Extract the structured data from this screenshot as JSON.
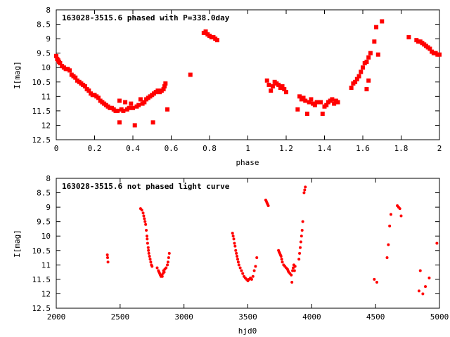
{
  "chart_data": [
    {
      "type": "scatter",
      "title": "163028-3515.6 phased with P=338.0day",
      "xlabel": "phase",
      "ylabel": "I[mag]",
      "xlim": [
        0,
        2
      ],
      "ylim": [
        12.5,
        8
      ],
      "y_inverted": true,
      "xticks": [
        "0",
        "0.2",
        "0.4",
        "0.6",
        "0.8",
        "1",
        "1.2",
        "1.4",
        "1.6",
        "1.8",
        "2"
      ],
      "yticks": [
        "8",
        "8.5",
        "9",
        "9.5",
        "10",
        "10.5",
        "11",
        "11.5",
        "12",
        "12.5"
      ],
      "marker": "filled-square",
      "color": "#ff0000",
      "series": [
        {
          "points": [
            [
              0.0,
              9.6
            ],
            [
              0.005,
              9.7
            ],
            [
              0.01,
              9.75
            ],
            [
              0.015,
              9.8
            ],
            [
              0.02,
              9.85
            ],
            [
              0.03,
              9.95
            ],
            [
              0.04,
              10.0
            ],
            [
              0.05,
              10.05
            ],
            [
              0.06,
              10.05
            ],
            [
              0.07,
              10.1
            ],
            [
              0.08,
              10.25
            ],
            [
              0.09,
              10.3
            ],
            [
              0.1,
              10.35
            ],
            [
              0.11,
              10.45
            ],
            [
              0.12,
              10.5
            ],
            [
              0.13,
              10.55
            ],
            [
              0.14,
              10.6
            ],
            [
              0.15,
              10.65
            ],
            [
              0.16,
              10.75
            ],
            [
              0.17,
              10.8
            ],
            [
              0.18,
              10.9
            ],
            [
              0.19,
              10.95
            ],
            [
              0.2,
              10.95
            ],
            [
              0.21,
              11.0
            ],
            [
              0.22,
              11.05
            ],
            [
              0.23,
              11.15
            ],
            [
              0.24,
              11.2
            ],
            [
              0.25,
              11.25
            ],
            [
              0.26,
              11.3
            ],
            [
              0.27,
              11.35
            ],
            [
              0.28,
              11.4
            ],
            [
              0.29,
              11.4
            ],
            [
              0.3,
              11.45
            ],
            [
              0.31,
              11.5
            ],
            [
              0.32,
              11.5
            ],
            [
              0.33,
              11.15
            ],
            [
              0.33,
              11.9
            ],
            [
              0.34,
              11.45
            ],
            [
              0.35,
              11.5
            ],
            [
              0.36,
              11.2
            ],
            [
              0.37,
              11.45
            ],
            [
              0.38,
              11.4
            ],
            [
              0.39,
              11.25
            ],
            [
              0.4,
              11.4
            ],
            [
              0.41,
              12.0
            ],
            [
              0.42,
              11.35
            ],
            [
              0.43,
              11.3
            ],
            [
              0.44,
              11.1
            ],
            [
              0.45,
              11.25
            ],
            [
              0.46,
              11.2
            ],
            [
              0.47,
              11.1
            ],
            [
              0.48,
              11.05
            ],
            [
              0.49,
              11.0
            ],
            [
              0.5,
              10.95
            ],
            [
              0.505,
              11.9
            ],
            [
              0.51,
              10.9
            ],
            [
              0.52,
              10.85
            ],
            [
              0.53,
              10.8
            ],
            [
              0.54,
              10.85
            ],
            [
              0.55,
              10.8
            ],
            [
              0.56,
              10.75
            ],
            [
              0.565,
              10.65
            ],
            [
              0.57,
              10.55
            ],
            [
              0.58,
              11.45
            ],
            [
              0.7,
              10.25
            ],
            [
              0.77,
              8.8
            ],
            [
              0.78,
              8.75
            ],
            [
              0.79,
              8.85
            ],
            [
              0.8,
              8.9
            ],
            [
              0.81,
              8.95
            ],
            [
              0.82,
              8.95
            ],
            [
              0.83,
              9.0
            ],
            [
              0.84,
              9.05
            ],
            [
              1.1,
              10.45
            ],
            [
              1.11,
              10.6
            ],
            [
              1.12,
              10.8
            ],
            [
              1.13,
              10.65
            ],
            [
              1.14,
              10.5
            ],
            [
              1.15,
              10.55
            ],
            [
              1.16,
              10.6
            ],
            [
              1.17,
              10.7
            ],
            [
              1.18,
              10.65
            ],
            [
              1.19,
              10.75
            ],
            [
              1.2,
              10.85
            ],
            [
              1.26,
              11.45
            ],
            [
              1.27,
              11.0
            ],
            [
              1.28,
              11.1
            ],
            [
              1.29,
              11.05
            ],
            [
              1.3,
              11.15
            ],
            [
              1.31,
              11.6
            ],
            [
              1.32,
              11.2
            ],
            [
              1.33,
              11.1
            ],
            [
              1.34,
              11.25
            ],
            [
              1.35,
              11.3
            ],
            [
              1.36,
              11.2
            ],
            [
              1.38,
              11.2
            ],
            [
              1.39,
              11.6
            ],
            [
              1.4,
              11.35
            ],
            [
              1.41,
              11.3
            ],
            [
              1.42,
              11.2
            ],
            [
              1.43,
              11.15
            ],
            [
              1.44,
              11.1
            ],
            [
              1.45,
              11.25
            ],
            [
              1.46,
              11.15
            ],
            [
              1.47,
              11.2
            ],
            [
              1.54,
              10.7
            ],
            [
              1.55,
              10.55
            ],
            [
              1.56,
              10.5
            ],
            [
              1.57,
              10.4
            ],
            [
              1.58,
              10.3
            ],
            [
              1.59,
              10.15
            ],
            [
              1.6,
              10.0
            ],
            [
              1.61,
              9.85
            ],
            [
              1.62,
              9.8
            ],
            [
              1.63,
              9.65
            ],
            [
              1.64,
              9.5
            ],
            [
              1.62,
              10.75
            ],
            [
              1.63,
              10.45
            ],
            [
              1.66,
              9.1
            ],
            [
              1.67,
              8.6
            ],
            [
              1.68,
              9.55
            ],
            [
              1.7,
              8.4
            ],
            [
              1.84,
              8.95
            ],
            [
              1.88,
              9.05
            ],
            [
              1.89,
              9.1
            ],
            [
              1.9,
              9.1
            ],
            [
              1.91,
              9.15
            ],
            [
              1.92,
              9.2
            ],
            [
              1.93,
              9.25
            ],
            [
              1.94,
              9.3
            ],
            [
              1.95,
              9.35
            ],
            [
              1.96,
              9.45
            ],
            [
              1.97,
              9.5
            ],
            [
              1.98,
              9.5
            ],
            [
              1.99,
              9.55
            ],
            [
              2.0,
              9.55
            ]
          ]
        }
      ]
    },
    {
      "type": "scatter",
      "title": "163028-3515.6 not phased light curve",
      "xlabel": "hjd0",
      "ylabel": "I[mag]",
      "xlim": [
        2000,
        5000
      ],
      "ylim": [
        12.5,
        8
      ],
      "y_inverted": true,
      "xticks": [
        "2000",
        "2500",
        "3000",
        "3500",
        "4000",
        "4500",
        "5000"
      ],
      "yticks": [
        "8",
        "8.5",
        "9",
        "9.5",
        "10",
        "10.5",
        "11",
        "11.5",
        "12",
        "12.5"
      ],
      "marker": "filled-circle",
      "color": "#ff0000",
      "series": [
        {
          "points": [
            [
              2400,
              10.65
            ],
            [
              2402,
              10.75
            ],
            [
              2405,
              10.9
            ],
            [
              2660,
              9.05
            ],
            [
              2670,
              9.1
            ],
            [
              2680,
              9.2
            ],
            [
              2685,
              9.3
            ],
            [
              2690,
              9.4
            ],
            [
              2695,
              9.5
            ],
            [
              2700,
              9.6
            ],
            [
              2705,
              9.8
            ],
            [
              2710,
              10.0
            ],
            [
              2712,
              10.1
            ],
            [
              2715,
              10.25
            ],
            [
              2720,
              10.4
            ],
            [
              2722,
              10.5
            ],
            [
              2725,
              10.6
            ],
            [
              2730,
              10.7
            ],
            [
              2735,
              10.8
            ],
            [
              2740,
              10.9
            ],
            [
              2745,
              11.0
            ],
            [
              2750,
              11.05
            ],
            [
              2790,
              11.1
            ],
            [
              2800,
              11.2
            ],
            [
              2805,
              11.25
            ],
            [
              2810,
              11.3
            ],
            [
              2815,
              11.35
            ],
            [
              2820,
              11.4
            ],
            [
              2825,
              11.35
            ],
            [
              2830,
              11.4
            ],
            [
              2835,
              11.3
            ],
            [
              2840,
              11.2
            ],
            [
              2845,
              11.25
            ],
            [
              2850,
              11.15
            ],
            [
              2860,
              11.1
            ],
            [
              2870,
              11.0
            ],
            [
              2875,
              10.9
            ],
            [
              2880,
              10.75
            ],
            [
              2885,
              10.6
            ],
            [
              3380,
              9.9
            ],
            [
              3385,
              10.0
            ],
            [
              3390,
              10.1
            ],
            [
              3395,
              10.25
            ],
            [
              3400,
              10.35
            ],
            [
              3405,
              10.5
            ],
            [
              3410,
              10.6
            ],
            [
              3415,
              10.7
            ],
            [
              3420,
              10.8
            ],
            [
              3425,
              10.9
            ],
            [
              3430,
              11.0
            ],
            [
              3440,
              11.1
            ],
            [
              3450,
              11.2
            ],
            [
              3460,
              11.3
            ],
            [
              3470,
              11.4
            ],
            [
              3480,
              11.45
            ],
            [
              3490,
              11.5
            ],
            [
              3500,
              11.55
            ],
            [
              3510,
              11.5
            ],
            [
              3520,
              11.45
            ],
            [
              3530,
              11.5
            ],
            [
              3540,
              11.4
            ],
            [
              3550,
              11.2
            ],
            [
              3560,
              11.05
            ],
            [
              3570,
              10.75
            ],
            [
              3640,
              8.75
            ],
            [
              3645,
              8.8
            ],
            [
              3650,
              8.85
            ],
            [
              3655,
              8.9
            ],
            [
              3660,
              8.95
            ],
            [
              3740,
              10.5
            ],
            [
              3745,
              10.55
            ],
            [
              3750,
              10.6
            ],
            [
              3755,
              10.65
            ],
            [
              3760,
              10.7
            ],
            [
              3765,
              10.8
            ],
            [
              3770,
              10.9
            ],
            [
              3780,
              11.0
            ],
            [
              3790,
              11.05
            ],
            [
              3800,
              11.1
            ],
            [
              3810,
              11.15
            ],
            [
              3815,
              11.2
            ],
            [
              3820,
              11.25
            ],
            [
              3830,
              11.3
            ],
            [
              3840,
              11.35
            ],
            [
              3845,
              11.6
            ],
            [
              3850,
              11.2
            ],
            [
              3855,
              11.1
            ],
            [
              3860,
              11.0
            ],
            [
              3865,
              11.2
            ],
            [
              3870,
              11.05
            ],
            [
              3900,
              10.8
            ],
            [
              3905,
              10.6
            ],
            [
              3910,
              10.4
            ],
            [
              3915,
              10.2
            ],
            [
              3920,
              10.0
            ],
            [
              3925,
              9.8
            ],
            [
              3930,
              9.5
            ],
            [
              3940,
              8.5
            ],
            [
              3945,
              8.4
            ],
            [
              3950,
              8.3
            ],
            [
              4490,
              11.5
            ],
            [
              4510,
              11.6
            ],
            [
              4590,
              10.75
            ],
            [
              4600,
              10.3
            ],
            [
              4610,
              9.65
            ],
            [
              4620,
              9.25
            ],
            [
              4670,
              8.95
            ],
            [
              4680,
              9.0
            ],
            [
              4690,
              9.05
            ],
            [
              4700,
              9.3
            ],
            [
              4840,
              11.9
            ],
            [
              4850,
              11.2
            ],
            [
              4870,
              12.0
            ],
            [
              4890,
              11.75
            ],
            [
              4920,
              11.45
            ],
            [
              4980,
              10.25
            ]
          ]
        }
      ]
    }
  ]
}
